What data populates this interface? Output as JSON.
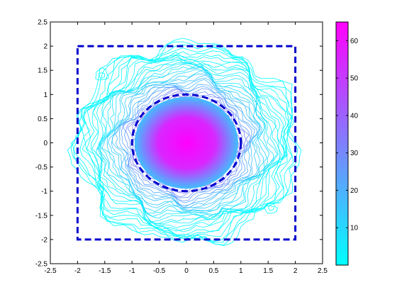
{
  "chart_data": {
    "type": "contour",
    "title": "",
    "xlabel": "",
    "ylabel": "",
    "xlim": [
      -2.5,
      2.5
    ],
    "ylim": [
      -2.5,
      2.5
    ],
    "xticks": [
      "-2.5",
      "-2",
      "-1.5",
      "-1",
      "-0.5",
      "0",
      "0.5",
      "1",
      "1.5",
      "2",
      "2.5"
    ],
    "yticks": [
      "2.5",
      "2",
      "1.5",
      "1",
      "0.5",
      "0",
      "-0.5",
      "-1",
      "-1.5",
      "-2",
      "-2.5"
    ],
    "grid": false,
    "colormap": {
      "name": "cool",
      "low_color": "#00ffff",
      "high_color": "#ff00ff",
      "range": [
        0,
        65
      ],
      "ticks": [
        "60",
        "50",
        "40",
        "30",
        "20",
        "10"
      ]
    },
    "density_peak": {
      "center": [
        0,
        0
      ],
      "peak_value": 65,
      "outer_level": 1
    },
    "overlays": [
      {
        "shape": "square",
        "corners": [
          [
            -2,
            -2
          ],
          [
            2,
            2
          ]
        ],
        "style": "dashed",
        "color": "#0000cc"
      },
      {
        "shape": "circle",
        "center": [
          0,
          0
        ],
        "radius": 1,
        "style": "dashed",
        "color": "#0000cc"
      }
    ]
  }
}
